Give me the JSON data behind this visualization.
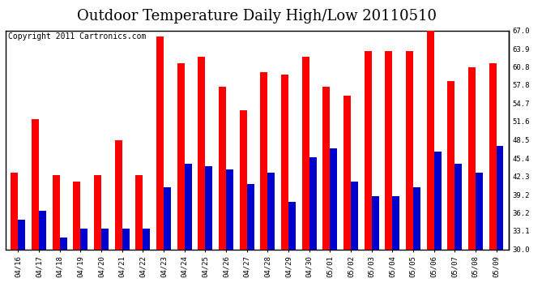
{
  "title": "Outdoor Temperature Daily High/Low 20110510",
  "copyright": "Copyright 2011 Cartronics.com",
  "dates": [
    "04/16",
    "04/17",
    "04/18",
    "04/19",
    "04/20",
    "04/21",
    "04/22",
    "04/23",
    "04/24",
    "04/25",
    "04/26",
    "04/27",
    "04/28",
    "04/29",
    "04/30",
    "05/01",
    "05/02",
    "05/03",
    "05/04",
    "05/05",
    "05/06",
    "05/07",
    "05/08",
    "05/09"
  ],
  "highs": [
    43.0,
    52.0,
    42.5,
    41.5,
    42.5,
    48.5,
    42.5,
    66.0,
    61.5,
    62.5,
    57.5,
    53.5,
    60.0,
    59.5,
    62.5,
    57.5,
    56.0,
    63.5,
    63.5,
    63.5,
    67.0,
    58.5,
    60.8,
    61.5
  ],
  "lows": [
    35.0,
    36.5,
    32.0,
    33.5,
    33.5,
    33.5,
    33.5,
    40.5,
    44.5,
    44.0,
    43.5,
    41.0,
    43.0,
    38.0,
    45.5,
    47.0,
    41.5,
    39.0,
    39.0,
    40.5,
    46.5,
    44.5,
    43.0,
    47.5
  ],
  "bar_color_high": "#ff0000",
  "bar_color_low": "#0000cc",
  "background_color": "#ffffff",
  "grid_color": "#aaaaaa",
  "ymin": 30.0,
  "ymax": 67.0,
  "yticks_right": [
    30.0,
    33.1,
    36.2,
    39.2,
    42.3,
    45.4,
    48.5,
    51.6,
    54.7,
    57.8,
    60.8,
    63.9,
    67.0
  ],
  "title_fontsize": 13,
  "copyright_fontsize": 7,
  "bar_width": 0.35
}
